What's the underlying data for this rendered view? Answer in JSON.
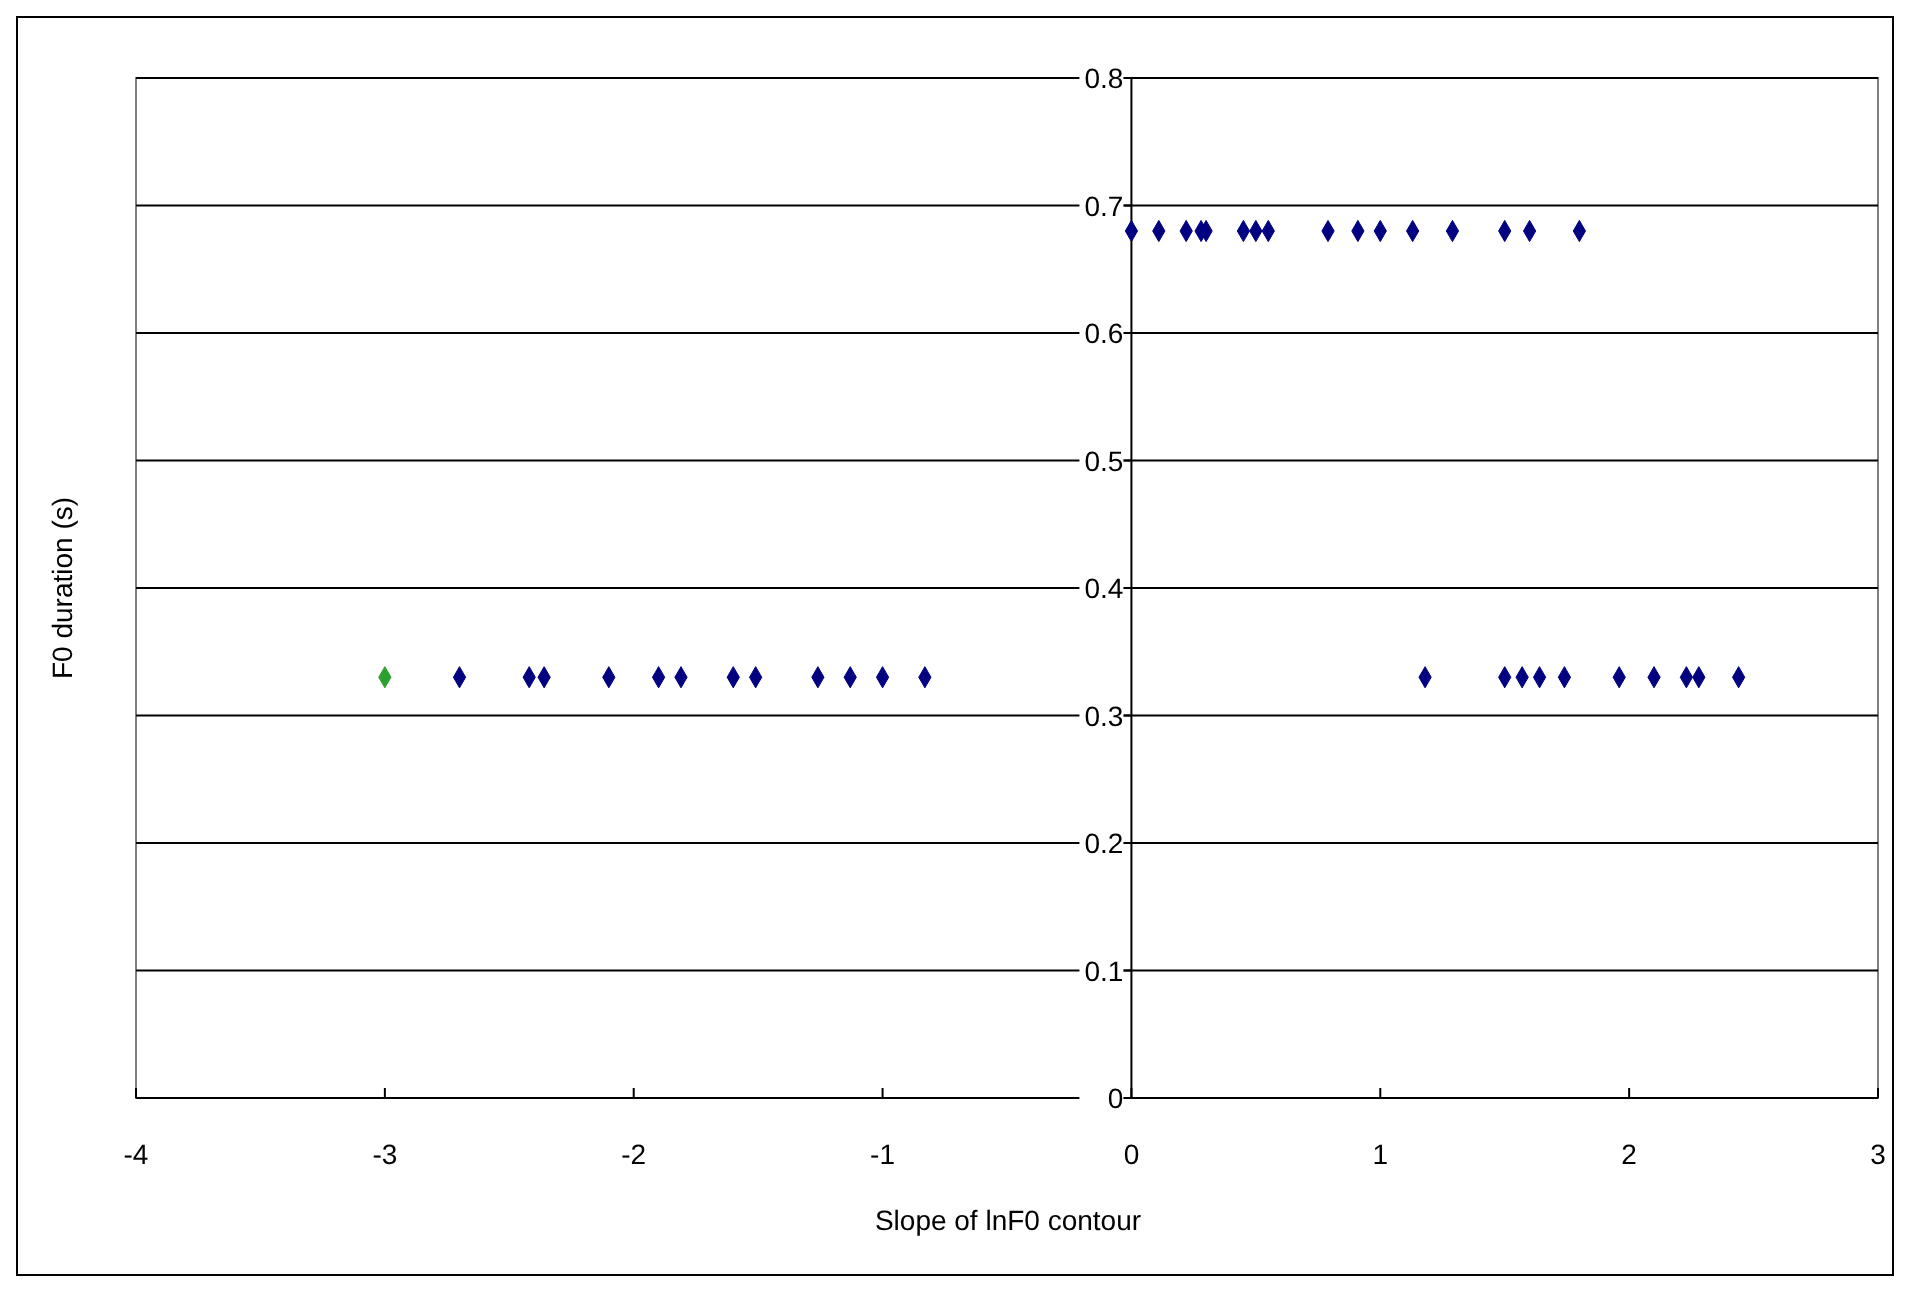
{
  "chart_data": {
    "type": "scatter",
    "xlabel": "Slope of lnF0 contour",
    "ylabel": "F0 duration (s)",
    "xlim": [
      -4,
      3
    ],
    "xticks": [
      -4,
      -3,
      -2,
      -1,
      0,
      1,
      2,
      3
    ],
    "ylim": [
      0,
      0.8
    ],
    "yticks": [
      0,
      0.1,
      0.2,
      0.3,
      0.4,
      0.5,
      0.6,
      0.7,
      0.8
    ],
    "grid": "y",
    "marker": "diamond",
    "series": [
      {
        "color": "#2ca02c",
        "x": [
          -3.0
        ],
        "values": [
          0.33
        ]
      },
      {
        "color": "#000080",
        "x": [
          -2.7,
          -2.42,
          -2.36,
          -2.1,
          -1.9,
          -1.81,
          -1.6,
          -1.51,
          -1.26,
          -1.13,
          -1.0,
          -0.83,
          0,
          0.11,
          0.22,
          0.28,
          0.3,
          0.45,
          0.5,
          0.55,
          0.79,
          0.91,
          1.0,
          1.13,
          1.29,
          1.5,
          1.6,
          1.8,
          1.18,
          1.5,
          1.57,
          1.64,
          1.74,
          1.96,
          2.1,
          2.23,
          2.28,
          2.44
        ],
        "values": [
          0.33,
          0.33,
          0.33,
          0.33,
          0.33,
          0.33,
          0.33,
          0.33,
          0.33,
          0.33,
          0.33,
          0.33,
          0.68,
          0.68,
          0.68,
          0.68,
          0.68,
          0.68,
          0.68,
          0.68,
          0.68,
          0.68,
          0.68,
          0.68,
          0.68,
          0.68,
          0.68,
          0.68,
          0.33,
          0.33,
          0.33,
          0.33,
          0.33,
          0.33,
          0.33,
          0.33,
          0.33,
          0.33
        ]
      }
    ]
  }
}
